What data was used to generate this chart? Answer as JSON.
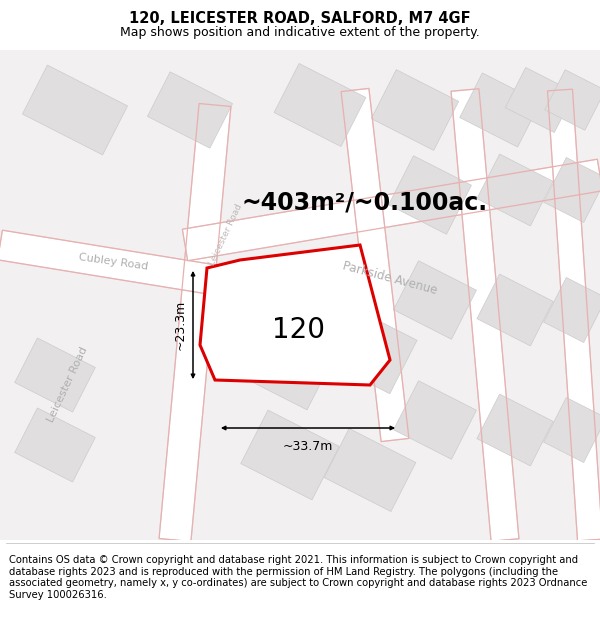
{
  "title": "120, LEICESTER ROAD, SALFORD, M7 4GF",
  "subtitle": "Map shows position and indicative extent of the property.",
  "area_text": "~403m²/~0.100ac.",
  "property_number": "120",
  "width_label": "~33.7m",
  "height_label": "~23.3m",
  "copyright_text": "Contains OS data © Crown copyright and database right 2021. This information is subject to Crown copyright and database rights 2023 and is reproduced with the permission of HM Land Registry. The polygons (including the associated geometry, namely x, y co-ordinates) are subject to Crown copyright and database rights 2023 Ordnance Survey 100026316.",
  "map_bg": "#f2f0f0",
  "road_fill": "#ffffff",
  "road_edge": "#e0d8d8",
  "plot_road_edge": "#e8b0b0",
  "building_fill": "#e0dede",
  "building_edge": "#cccccc",
  "plot_fill": "#ffffff",
  "plot_stroke": "#dd0000",
  "title_fontsize": 10.5,
  "subtitle_fontsize": 9,
  "area_fontsize": 17,
  "number_fontsize": 20,
  "label_fontsize": 9,
  "road_label_fontsize": 8,
  "copyright_fontsize": 7.2
}
